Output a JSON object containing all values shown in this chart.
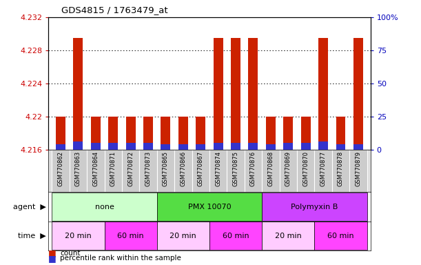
{
  "title": "GDS4815 / 1763479_at",
  "samples": [
    "GSM770862",
    "GSM770863",
    "GSM770864",
    "GSM770871",
    "GSM770872",
    "GSM770873",
    "GSM770865",
    "GSM770866",
    "GSM770867",
    "GSM770874",
    "GSM770875",
    "GSM770876",
    "GSM770868",
    "GSM770869",
    "GSM770870",
    "GSM770877",
    "GSM770878",
    "GSM770879"
  ],
  "count_values": [
    4.22,
    4.2295,
    4.22,
    4.22,
    4.22,
    4.22,
    4.22,
    4.22,
    4.22,
    4.2295,
    4.2295,
    4.2295,
    4.22,
    4.22,
    4.22,
    4.2295,
    4.22,
    4.2295
  ],
  "percentile_values": [
    4.2167,
    4.217,
    4.2168,
    4.2168,
    4.2168,
    4.2168,
    4.2167,
    4.2167,
    4.2167,
    4.2168,
    4.2168,
    4.2168,
    4.2167,
    4.2168,
    4.2168,
    4.217,
    4.2167,
    4.2167
  ],
  "y_min": 4.216,
  "y_max": 4.232,
  "y_ticks": [
    4.216,
    4.22,
    4.224,
    4.228,
    4.232
  ],
  "y_right_ticks": [
    0,
    25,
    50,
    75,
    100
  ],
  "bar_color": "#cc2200",
  "percentile_color": "#3333cc",
  "bar_width": 0.55,
  "agent_groups": [
    {
      "label": "none",
      "start": 0,
      "end": 6,
      "color": "#ccffcc"
    },
    {
      "label": "PMX 10070",
      "start": 6,
      "end": 12,
      "color": "#55dd44"
    },
    {
      "label": "Polymyxin B",
      "start": 12,
      "end": 18,
      "color": "#cc44ff"
    }
  ],
  "time_groups": [
    {
      "label": "20 min",
      "start": 0,
      "end": 3,
      "color": "#ffccff"
    },
    {
      "label": "60 min",
      "start": 3,
      "end": 6,
      "color": "#ff44ff"
    },
    {
      "label": "20 min",
      "start": 6,
      "end": 9,
      "color": "#ffccff"
    },
    {
      "label": "60 min",
      "start": 9,
      "end": 12,
      "color": "#ff44ff"
    },
    {
      "label": "20 min",
      "start": 12,
      "end": 15,
      "color": "#ffccff"
    },
    {
      "label": "60 min",
      "start": 15,
      "end": 18,
      "color": "#ff44ff"
    }
  ],
  "ylabel_left_color": "#cc0000",
  "ylabel_right_color": "#0000bb",
  "legend_count_color": "#cc2200",
  "legend_percentile_color": "#3333cc"
}
